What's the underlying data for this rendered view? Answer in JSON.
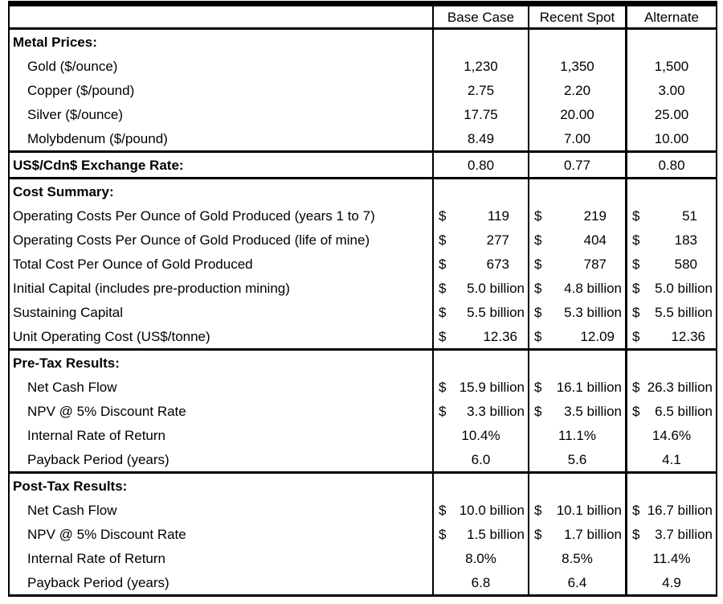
{
  "table": {
    "colors": {
      "border": "#000000",
      "background": "#ffffff",
      "text": "#000000"
    },
    "columns": [
      "",
      "Base Case",
      "Recent Spot",
      "Alternate"
    ],
    "rows": [
      {
        "type": "section",
        "label": "Metal Prices:",
        "align": "center",
        "values": [
          "",
          "",
          ""
        ]
      },
      {
        "type": "data",
        "indent": true,
        "align": "center",
        "label": "Gold ($/ounce)",
        "values": [
          "1,230",
          "1,350",
          "1,500"
        ]
      },
      {
        "type": "data",
        "indent": true,
        "align": "center",
        "label": "Copper ($/pound)",
        "values": [
          "2.75",
          "2.20",
          "3.00"
        ]
      },
      {
        "type": "data",
        "indent": true,
        "align": "center",
        "label": "Silver ($/ounce)",
        "values": [
          "17.75",
          "20.00",
          "25.00"
        ]
      },
      {
        "type": "data",
        "indent": true,
        "align": "center",
        "label": "Molybdenum ($/pound)",
        "values": [
          "8.49",
          "7.00",
          "10.00"
        ]
      },
      {
        "type": "section",
        "sep": true,
        "align": "center",
        "label": "US$/Cdn$ Exchange Rate:",
        "values": [
          "0.80",
          "0.77",
          "0.80"
        ]
      },
      {
        "type": "section",
        "sep": true,
        "align": "center",
        "label": "Cost Summary:",
        "values": [
          "",
          "",
          ""
        ]
      },
      {
        "type": "data",
        "align": "acct",
        "label": "Operating Costs Per Ounce of Gold Produced (years 1 to 7)",
        "values": [
          "$ 119",
          "$ 219",
          "$ 51"
        ]
      },
      {
        "type": "data",
        "align": "acct",
        "label": "Operating Costs Per Ounce of Gold Produced (life of mine)",
        "values": [
          "$ 277",
          "$ 404",
          "$ 183"
        ]
      },
      {
        "type": "data",
        "align": "acct",
        "label": "Total Cost Per Ounce of Gold Produced",
        "values": [
          "$ 673",
          "$ 787",
          "$ 580"
        ]
      },
      {
        "type": "data",
        "align": "acct",
        "label": "Initial Capital (includes pre-production mining)",
        "values": [
          "$ 5.0 billion",
          "$ 4.8 billion",
          "$ 5.0 billion"
        ]
      },
      {
        "type": "data",
        "align": "acct",
        "label": "Sustaining Capital",
        "values": [
          "$ 5.5 billion",
          "$ 5.3 billion",
          "$ 5.5 billion"
        ]
      },
      {
        "type": "data",
        "align": "acct",
        "label": "Unit Operating Cost (US$/tonne)",
        "values": [
          "$ 12.36",
          "$ 12.09",
          "$ 12.36"
        ]
      },
      {
        "type": "section",
        "sep": true,
        "align": "center",
        "label": "Pre-Tax Results:",
        "values": [
          "",
          "",
          ""
        ]
      },
      {
        "type": "data",
        "indent": true,
        "align": "acct",
        "label": "Net Cash Flow",
        "values": [
          "$ 15.9 billion",
          "$ 16.1 billion",
          "$ 26.3 billion"
        ]
      },
      {
        "type": "data",
        "indent": true,
        "align": "acct",
        "label": "NPV @ 5% Discount Rate",
        "values": [
          "$ 3.3 billion",
          "$ 3.5 billion",
          "$ 6.5 billion"
        ]
      },
      {
        "type": "data",
        "indent": true,
        "align": "center",
        "label": "Internal Rate of Return",
        "values": [
          "10.4%",
          "11.1%",
          "14.6%"
        ]
      },
      {
        "type": "data",
        "indent": true,
        "align": "center",
        "label": "Payback Period (years)",
        "values": [
          "6.0",
          "5.6",
          "4.1"
        ]
      },
      {
        "type": "section",
        "sep": true,
        "align": "center",
        "label": "Post-Tax Results:",
        "values": [
          "",
          "",
          ""
        ]
      },
      {
        "type": "data",
        "indent": true,
        "align": "acct",
        "label": "Net Cash Flow",
        "values": [
          "$ 10.0 billion",
          "$ 10.1 billion",
          "$ 16.7 billion"
        ]
      },
      {
        "type": "data",
        "indent": true,
        "align": "acct",
        "label": "NPV @ 5% Discount Rate",
        "values": [
          "$ 1.5 billion",
          "$ 1.7 billion",
          "$ 3.7 billion"
        ]
      },
      {
        "type": "data",
        "indent": true,
        "align": "center",
        "label": "Internal Rate of Return",
        "values": [
          "8.0%",
          "8.5%",
          "11.4%"
        ]
      },
      {
        "type": "data",
        "indent": true,
        "align": "center",
        "label": "Payback Period (years)",
        "values": [
          "6.8",
          "6.4",
          "4.9"
        ]
      }
    ]
  }
}
